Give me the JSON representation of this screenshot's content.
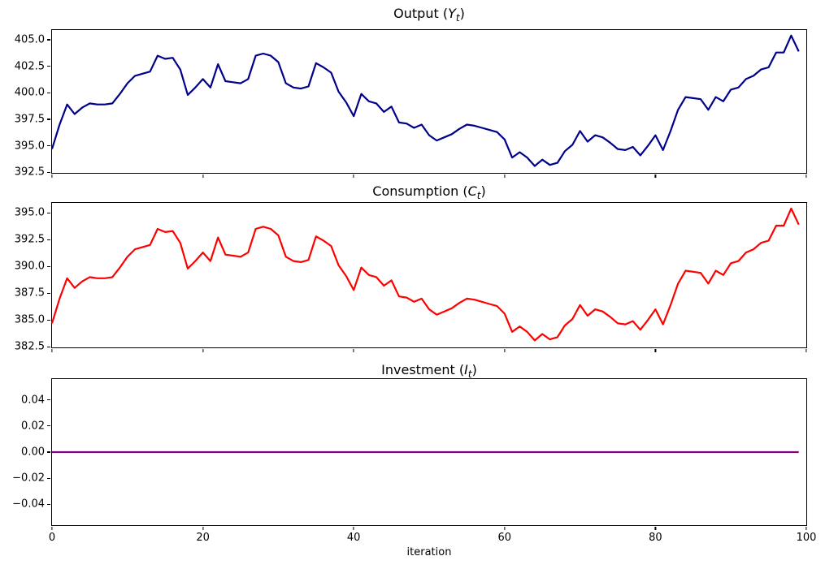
{
  "figure": {
    "background": "#ffffff",
    "xlabel": "iteration",
    "text_color": "#000000",
    "spine_color": "#000000"
  },
  "chart_data": [
    {
      "name": "output",
      "type": "line",
      "title_text": "Output (Y_t)",
      "title": {
        "prefix": "Output (",
        "var": "Y",
        "sub": "t",
        "suffix": ")"
      },
      "line_color": "#00008B",
      "line_width": 2.2,
      "grid": false,
      "legend": null,
      "x_start": 0,
      "x_step": 1,
      "xlim": [
        0,
        100
      ],
      "ylim": [
        392.45,
        405.92
      ],
      "xticks": [
        0,
        20,
        40,
        60,
        80,
        100
      ],
      "yticks": [
        392.5,
        395.0,
        397.5,
        400.0,
        402.5,
        405.0
      ],
      "ytick_labels": [
        "392.5",
        "395.0",
        "397.5",
        "400.0",
        "402.5",
        "405.0"
      ],
      "values": [
        394.7,
        397.0,
        398.9,
        398.0,
        398.6,
        399.0,
        398.9,
        398.9,
        399.0,
        399.9,
        400.9,
        401.6,
        401.8,
        402.0,
        403.5,
        403.2,
        403.3,
        402.2,
        399.8,
        400.5,
        401.3,
        400.5,
        402.7,
        401.1,
        401.0,
        400.9,
        401.3,
        403.5,
        403.7,
        403.5,
        402.9,
        400.9,
        400.5,
        400.4,
        400.6,
        402.8,
        402.4,
        401.9,
        400.1,
        399.1,
        397.8,
        399.9,
        399.2,
        399.0,
        398.2,
        398.7,
        397.2,
        397.1,
        396.7,
        397.0,
        396.0,
        395.5,
        395.8,
        396.1,
        396.6,
        397.0,
        396.9,
        396.7,
        396.5,
        396.3,
        395.6,
        393.9,
        394.4,
        393.9,
        393.1,
        393.7,
        393.2,
        393.4,
        394.5,
        395.1,
        396.4,
        395.4,
        396.0,
        395.8,
        395.3,
        394.7,
        394.6,
        394.9,
        394.1,
        395.0,
        396.0,
        394.6,
        396.4,
        398.4,
        399.6,
        399.5,
        399.4,
        398.4,
        399.6,
        399.2,
        400.3,
        400.5,
        401.3,
        401.6,
        402.2,
        402.4,
        403.8,
        403.8,
        405.4,
        403.9
      ]
    },
    {
      "name": "consumption",
      "type": "line",
      "title_text": "Consumption (C_t)",
      "title": {
        "prefix": "Consumption (",
        "var": "C",
        "sub": "t",
        "suffix": ")"
      },
      "line_color": "#FF0000",
      "line_width": 2.2,
      "grid": false,
      "legend": null,
      "x_start": 0,
      "x_step": 1,
      "xlim": [
        0,
        100
      ],
      "ylim": [
        382.45,
        395.92
      ],
      "xticks": [
        0,
        20,
        40,
        60,
        80,
        100
      ],
      "yticks": [
        382.5,
        385.0,
        387.5,
        390.0,
        392.5,
        395.0
      ],
      "ytick_labels": [
        "382.5",
        "385.0",
        "387.5",
        "390.0",
        "392.5",
        "395.0"
      ],
      "values": [
        384.7,
        387.0,
        388.9,
        388.0,
        388.6,
        389.0,
        388.9,
        388.9,
        389.0,
        389.9,
        390.9,
        391.6,
        391.8,
        392.0,
        393.5,
        393.2,
        393.3,
        392.2,
        389.8,
        390.5,
        391.3,
        390.5,
        392.7,
        391.1,
        391.0,
        390.9,
        391.3,
        393.5,
        393.7,
        393.5,
        392.9,
        390.9,
        390.5,
        390.4,
        390.6,
        392.8,
        392.4,
        391.9,
        390.1,
        389.1,
        387.8,
        389.9,
        389.2,
        389.0,
        388.2,
        388.7,
        387.2,
        387.1,
        386.7,
        387.0,
        386.0,
        385.5,
        385.8,
        386.1,
        386.6,
        387.0,
        386.9,
        386.7,
        386.5,
        386.3,
        385.6,
        383.9,
        384.4,
        383.9,
        383.1,
        383.7,
        383.2,
        383.4,
        384.5,
        385.1,
        386.4,
        385.4,
        386.0,
        385.8,
        385.3,
        384.7,
        384.6,
        384.9,
        384.1,
        385.0,
        386.0,
        384.6,
        386.4,
        388.4,
        389.6,
        389.5,
        389.4,
        388.4,
        389.6,
        389.2,
        390.3,
        390.5,
        391.3,
        391.6,
        392.2,
        392.4,
        393.8,
        393.8,
        395.4,
        393.9
      ]
    },
    {
      "name": "investment",
      "type": "line",
      "title_text": "Investment (I_t)",
      "title": {
        "prefix": "Investment (",
        "var": "I",
        "sub": "t",
        "suffix": ")"
      },
      "line_color": "#800080",
      "line_width": 2.2,
      "grid": false,
      "legend": null,
      "x_start": 0,
      "x_step": 1,
      "xlim": [
        0,
        100
      ],
      "ylim": [
        -0.056,
        0.056
      ],
      "xticks": [
        0,
        20,
        40,
        60,
        80,
        100
      ],
      "xtick_labels": [
        "0",
        "20",
        "40",
        "60",
        "80",
        "100"
      ],
      "yticks": [
        -0.04,
        -0.02,
        0.0,
        0.02,
        0.04
      ],
      "ytick_labels": [
        "−0.04",
        "−0.02",
        "0.00",
        "0.02",
        "0.04"
      ],
      "constant": {
        "value": 0.0,
        "n": 100
      },
      "xlabel": "iteration"
    }
  ]
}
